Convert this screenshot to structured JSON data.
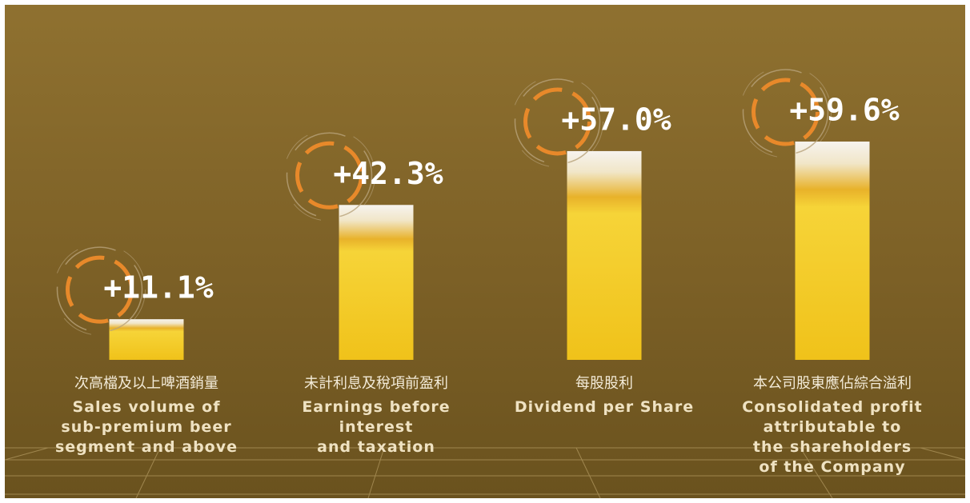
{
  "chart_data": {
    "type": "bar",
    "categories_zh": [
      "次高檔及以上啤酒銷量",
      "未計利息及稅項前盈利",
      "每股股利",
      "本公司股東應佔綜合溢利"
    ],
    "categories_en": [
      [
        "Sales volume of",
        "sub-premium beer",
        "segment and above"
      ],
      [
        "Earnings before",
        "interest",
        "and taxation"
      ],
      [
        "Dividend per Share"
      ],
      [
        "Consolidated profit",
        "attributable to",
        "the shareholders",
        "of the Company"
      ]
    ],
    "values": [
      11.1,
      42.3,
      57.0,
      59.6
    ],
    "value_labels": [
      "+11.1%",
      "+42.3%",
      "+57.0%",
      "+59.6%"
    ]
  }
}
